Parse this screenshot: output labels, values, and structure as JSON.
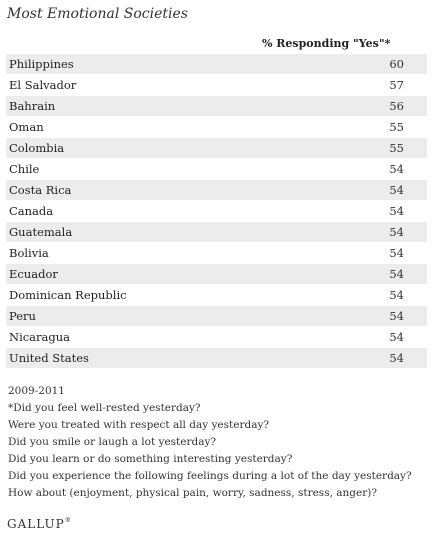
{
  "chart_data": {
    "type": "table",
    "title": "Most Emotional Societies",
    "column_header": "% Responding \"Yes\"*",
    "categories": [
      "Philippines",
      "El Salvador",
      "Bahrain",
      "Oman",
      "Colombia",
      "Chile",
      "Costa Rica",
      "Canada",
      "Guatemala",
      "Bolivia",
      "Ecuador",
      "Dominican Republic",
      "Peru",
      "Nicaragua",
      "United States"
    ],
    "values": [
      60,
      57,
      56,
      55,
      55,
      54,
      54,
      54,
      54,
      54,
      54,
      54,
      54,
      54,
      54
    ]
  },
  "notes": {
    "years": "2009-2011",
    "lines": [
      "*Did you feel well-rested yesterday?",
      "Were you treated with respect all day yesterday?",
      "Did you smile or laugh a lot yesterday?",
      "Did you learn or do something interesting yesterday?",
      "Did you experience the following feelings during a lot of the day yesterday?",
      "How about (enjoyment, physical pain, worry, sadness, stress, anger)?"
    ]
  },
  "logo": {
    "text": "GALLUP",
    "mark": "®"
  },
  "colors": {
    "row_shade": "#ececec",
    "text": "#222222"
  }
}
